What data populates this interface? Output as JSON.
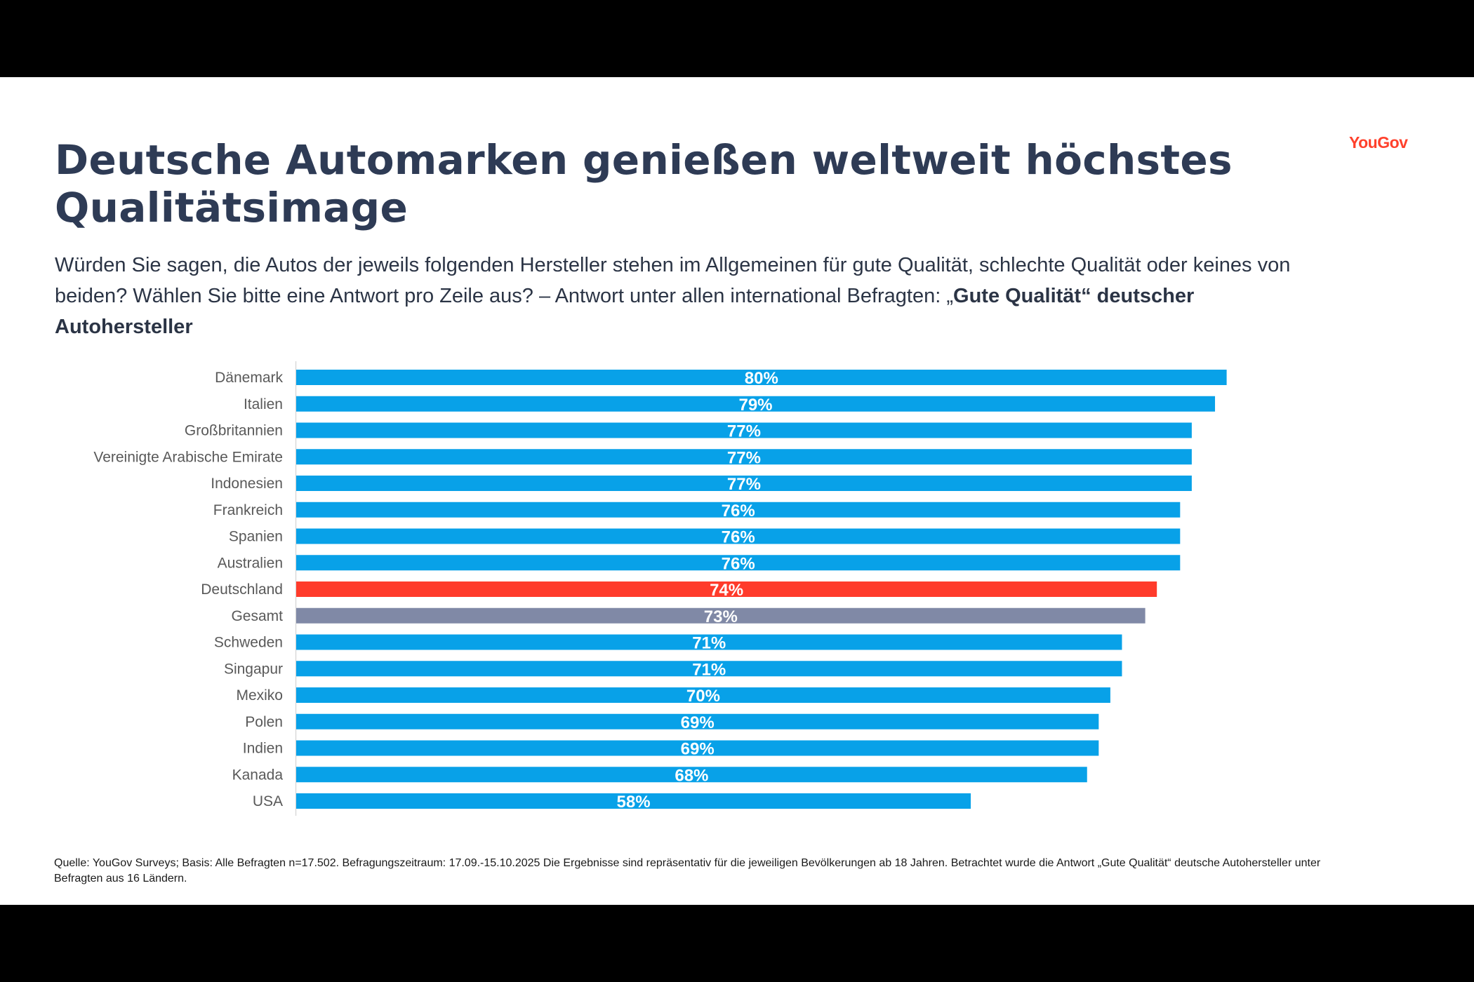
{
  "logo": {
    "text": "YouGov",
    "color": "#ff412c"
  },
  "title": "Deutsche Automarken genießen weltweit höchstes Qualitätsimage",
  "subtitle": {
    "regular": "Würden Sie sagen, die Autos der jeweils folgenden Hersteller stehen im Allgemeinen für gute Qualität, schlechte Qualität oder keines von beiden? Wählen Sie bitte eine Antwort pro Zeile aus? – Antwort unter allen international Befragten: „",
    "bold": "Gute Qualität“ deutscher Autohersteller"
  },
  "footnote": "Quelle: YouGov Surveys; Basis: Alle Befragten n=17.502. Befragungszeitraum: 17.09.-15.10.2025 Die Ergebnisse sind repräsentativ für die jeweiligen Bevölkerungen ab 18 Jahren. Betrachtet wurde die Antwort „Gute Qualität“ deutsche Autohersteller unter Befragten aus 16 Ländern.",
  "chart_data": {
    "type": "bar",
    "orientation": "horizontal",
    "title": "Gute Qualität deutscher Autohersteller",
    "xlabel": "",
    "ylabel": "",
    "unit": "%",
    "xlim": [
      0,
      100
    ],
    "grid": false,
    "legend": "none",
    "colors": {
      "default": "#08a1e8",
      "highlight": "#ff3b2b",
      "total": "#8089a6"
    },
    "categories": [
      "Dänemark",
      "Italien",
      "Großbritannien",
      "Vereinigte Arabische Emirate",
      "Indonesien",
      "Frankreich",
      "Spanien",
      "Australien",
      "Deutschland",
      "Gesamt",
      "Schweden",
      "Singapur",
      "Mexiko",
      "Polen",
      "Indien",
      "Kanada",
      "USA"
    ],
    "values": [
      80,
      79,
      77,
      77,
      77,
      76,
      76,
      76,
      74,
      73,
      71,
      71,
      70,
      69,
      69,
      68,
      58
    ],
    "data_labels": [
      "80%",
      "79%",
      "77%",
      "77%",
      "77%",
      "76%",
      "76%",
      "76%",
      "74%",
      "73%",
      "71%",
      "71%",
      "70%",
      "69%",
      "69%",
      "68%",
      "58%"
    ],
    "highlight": {
      "Deutschland": "highlight",
      "Gesamt": "total"
    }
  }
}
